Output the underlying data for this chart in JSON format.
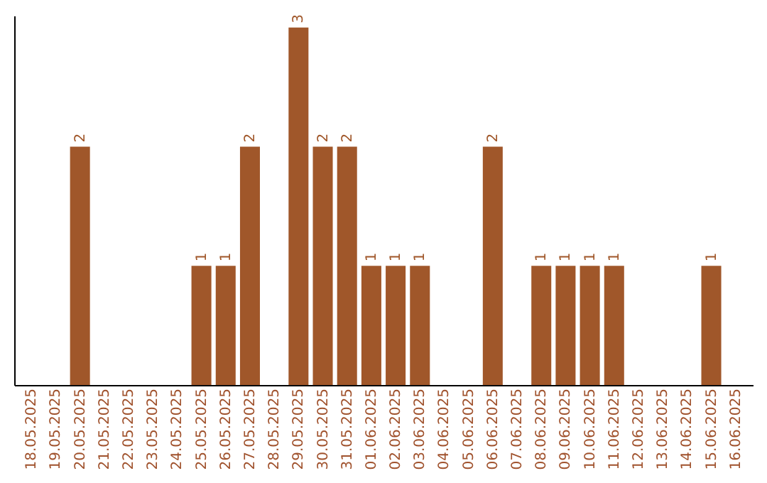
{
  "chart_data": {
    "type": "bar",
    "categories": [
      "18.05.2025",
      "19.05.2025",
      "20.05.2025",
      "21.05.2025",
      "22.05.2025",
      "23.05.2025",
      "24.05.2025",
      "25.05.2025",
      "26.05.2025",
      "27.05.2025",
      "28.05.2025",
      "29.05.2025",
      "30.05.2025",
      "31.05.2025",
      "01.06.2025",
      "02.06.2025",
      "03.06.2025",
      "04.06.2025",
      "05.06.2025",
      "06.06.2025",
      "07.06.2025",
      "08.06.2025",
      "09.06.2025",
      "10.06.2025",
      "11.06.2025",
      "12.06.2025",
      "13.06.2025",
      "14.06.2025",
      "15.06.2025",
      "16.06.2025"
    ],
    "values": [
      0,
      0,
      2,
      0,
      0,
      0,
      0,
      1,
      1,
      2,
      0,
      3,
      2,
      2,
      1,
      1,
      1,
      0,
      0,
      2,
      0,
      1,
      1,
      1,
      1,
      0,
      0,
      0,
      1,
      0
    ],
    "value_labels": [
      null,
      null,
      "2",
      null,
      null,
      null,
      null,
      "1",
      "1",
      "2",
      null,
      "3",
      "2",
      "2",
      "1",
      "1",
      "1",
      null,
      null,
      "2",
      null,
      "1",
      "1",
      "1",
      "1",
      null,
      null,
      null,
      "1",
      null
    ],
    "color": "#a0572a",
    "ylim": [
      0,
      3.1
    ],
    "tick_labels": "x",
    "grid": false
  }
}
